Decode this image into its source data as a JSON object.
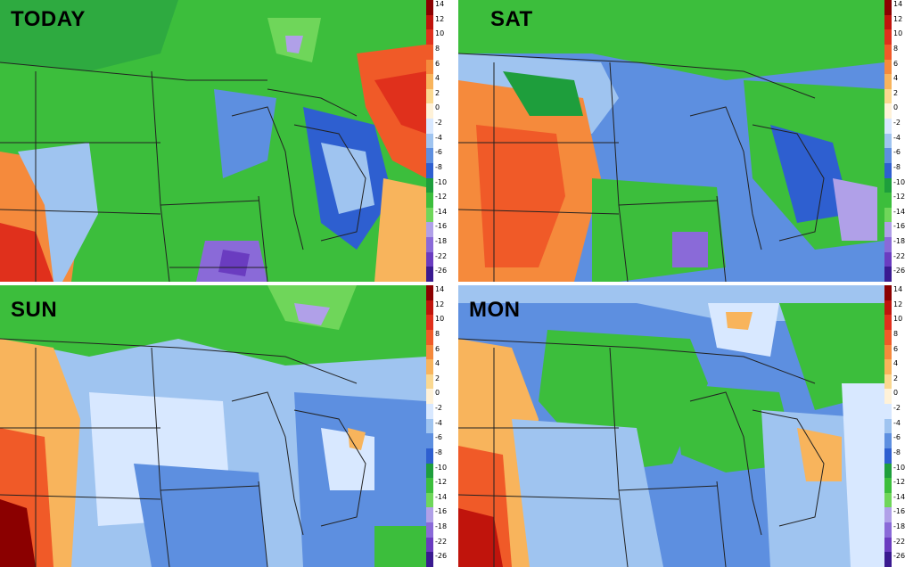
{
  "panels": [
    {
      "title": "TODAY"
    },
    {
      "title": "SAT"
    },
    {
      "title": "SUN"
    },
    {
      "title": "MON"
    }
  ],
  "legend": {
    "ticks": [
      "14",
      "12",
      "10",
      "8",
      "6",
      "4",
      "2",
      "0",
      "-2",
      "-4",
      "-6",
      "-8",
      "-10",
      "-12",
      "-14",
      "-16",
      "-18",
      "-22",
      "-26"
    ],
    "colors": [
      "#8b0000",
      "#c0140c",
      "#e0301c",
      "#f05a28",
      "#f58a3c",
      "#f8b45c",
      "#fad890",
      "#fff2d8",
      "#d8e8ff",
      "#9fc4f0",
      "#5d8fe0",
      "#2e5fd0",
      "#1e9e3c",
      "#3cbe3c",
      "#6fd65a",
      "#b0a0e8",
      "#8a6ad8",
      "#6a3cc0",
      "#3a1a90"
    ]
  }
}
